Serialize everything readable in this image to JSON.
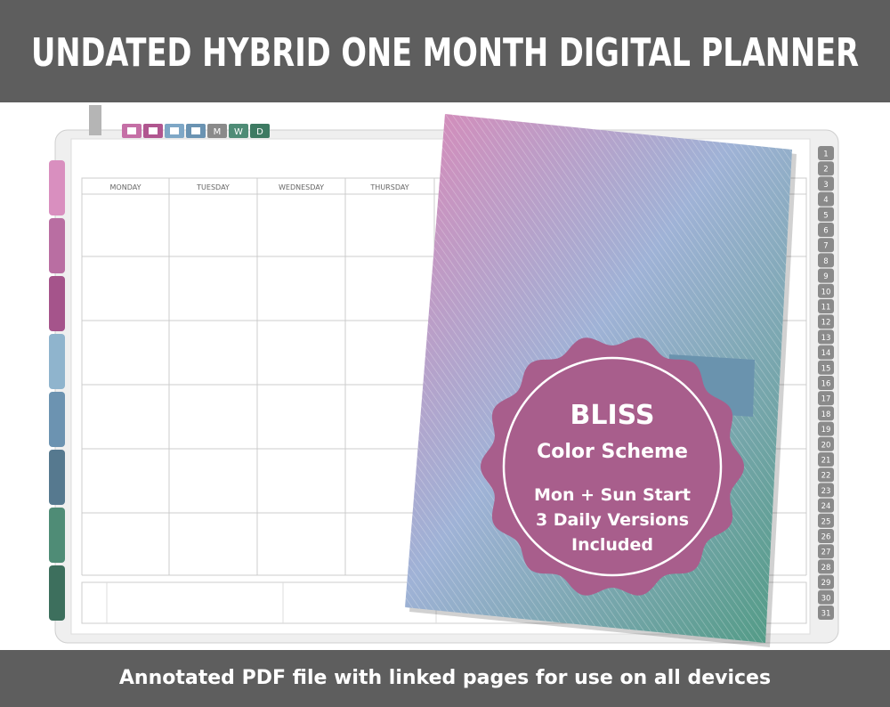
{
  "header": {
    "title": "UNDATED HYBRID ONE MONTH DIGITAL PLANNER"
  },
  "top_tabs": [
    "M",
    "W",
    "D"
  ],
  "calendar": {
    "days": [
      "MONDAY",
      "TUESDAY",
      "WEDNESDAY",
      "THURSDAY"
    ]
  },
  "day_tabs": [
    "1",
    "2",
    "3",
    "4",
    "5",
    "6",
    "7",
    "8",
    "9",
    "10",
    "11",
    "12",
    "13",
    "14",
    "15",
    "16",
    "17",
    "18",
    "19",
    "20",
    "21",
    "22",
    "23",
    "24",
    "25",
    "26",
    "27",
    "28",
    "29",
    "30",
    "31"
  ],
  "badge": {
    "title": "BLISS",
    "subtitle": "Color Scheme",
    "lines": [
      "Mon + Sun Start",
      "3 Daily Versions",
      "Included"
    ]
  },
  "footer": {
    "text": "Annotated PDF file with linked pages for use on all devices"
  }
}
